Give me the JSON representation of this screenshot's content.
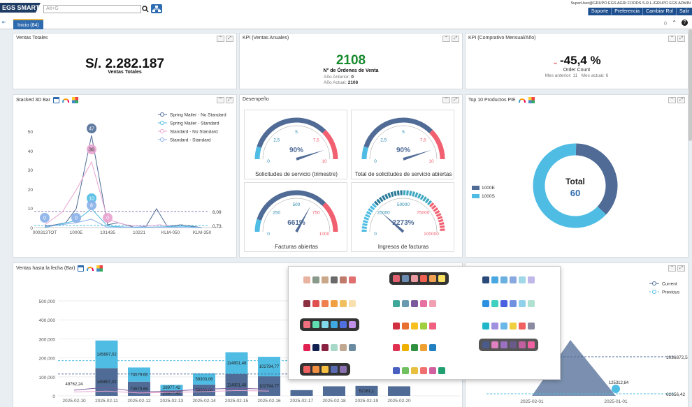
{
  "header": {
    "logo": "EGS SMART",
    "search_placeholder": "Alt+G",
    "user_info": "SuperUser@GRUPO EGS AGRI FOODS S.R.L./GRUPO EGS ADMIN",
    "nav": [
      "Soporte",
      "Preferencia",
      "Cambiar Rol",
      "Salir"
    ]
  },
  "tabs": [
    {
      "label": "Inicio (84)"
    }
  ],
  "panels": {
    "ventas_totales": {
      "title": "Ventas Totales",
      "value": "S/. 2.282.187",
      "caption": "Ventas Totales"
    },
    "kpi_anual": {
      "title": "KPI (Ventas Anuales)",
      "value": "2108",
      "caption": "N° de Órdenes de Venta",
      "prev_label": "Año Anterior:",
      "prev_value": "0",
      "curr_label": "Año Actual:",
      "curr_value": "2108"
    },
    "kpi_mensual": {
      "title": "KPI (Comprativo Mensual/Año)",
      "value": "-45,4 %",
      "caption": "Order Count",
      "prev_label": "Mes anterior:",
      "prev_value": "11",
      "curr_label": "Mes actual:",
      "curr_value": "6"
    },
    "stacked": {
      "title": "Stacked 3D Bar"
    },
    "desempeno": {
      "title": "Desempeño"
    },
    "top10": {
      "title": "Top 10 Productos PIE"
    },
    "ventas_fecha": {
      "title": "Ventas hasta la fecha (Bar)"
    }
  },
  "colors": {
    "accent": "#1e4f8e",
    "navy": "#4f6b96",
    "sky": "#4fbce3",
    "pink": "#e8a3d0",
    "kpi_green": "#188a2e"
  },
  "stacked_chart": {
    "series": [
      {
        "name": "Spring Mailer  - No Standard",
        "color": "#4f6b96"
      },
      {
        "name": "Spring Mailer  - Standard",
        "color": "#4fbce3"
      },
      {
        "name": "Standard - No Standard",
        "color": "#e8a3d0"
      },
      {
        "name": "Standard - Standard",
        "color": "#8ab0e8"
      }
    ],
    "y_ticks": [
      "50",
      "40",
      "30",
      "20",
      "10",
      "0"
    ],
    "x_ticks": [
      "000313TOT",
      "1000E",
      "101435",
      "10221",
      "KLM-050",
      "KLM-350"
    ],
    "ref_labels": [
      "8,09",
      "0,73"
    ],
    "bubbles": [
      "47",
      "36",
      "10",
      "8",
      "0",
      "0",
      "0"
    ]
  },
  "gauges": [
    {
      "label": "Solicitudes de servicio (trimestre)",
      "value": "90%",
      "ticks": [
        "0",
        "2,5",
        "5",
        "7,5",
        "10"
      ],
      "needle": 0.9
    },
    {
      "label": "Total de solicitudes de servicio abiertas",
      "value": "90%",
      "ticks": [
        "0",
        "2,5",
        "5",
        "7,5",
        "10"
      ],
      "needle": 0.9
    },
    {
      "label": "Facturas abiertas",
      "value": "661%",
      "ticks": [
        "0",
        "250",
        "500",
        "750",
        "1000"
      ],
      "needle": 0.66
    },
    {
      "label": "Ingresos de facturas",
      "value": "2273%",
      "ticks": [
        "0",
        "25000",
        "50000",
        "75000",
        "100000"
      ],
      "needle": 0.23
    }
  ],
  "donut": {
    "center_label": "Total",
    "center_value": "60",
    "legend": [
      {
        "name": "1000E",
        "color": "#4f6b96"
      },
      {
        "name": "1000S",
        "color": "#4fbce3"
      }
    ],
    "slices": [
      {
        "name": "1000E",
        "value": 22
      },
      {
        "name": "1000S",
        "value": 38
      }
    ]
  },
  "chart_data": {
    "type": "bar",
    "categories": [
      "2025-02-10",
      "2025-02-11",
      "2025-02-12",
      "2025-02-13",
      "2025-02-14",
      "2025-02-15",
      "2025-02-16",
      "2025-02-17",
      "2025-02-18",
      "2025-02-19",
      "2025-02-20"
    ],
    "series": [
      {
        "name": "",
        "values": [
          0,
          145697.02,
          74579.68,
          28977.42,
          59303.06,
          114801.48,
          102794.77,
          30000,
          50000,
          52161.1,
          50000
        ]
      },
      {
        "name": "",
        "values": [
          0,
          145697.02,
          74579.68,
          28977.42,
          59303.06,
          114801.48,
          102794.77,
          0,
          0,
          0,
          0
        ]
      }
    ],
    "bar_labels_bottom": [
      "",
      "145697,02",
      "74579,68",
      "28977,42",
      "59303,06",
      "114801,48",
      "102794,77",
      "",
      "",
      "52161,1",
      ""
    ],
    "bar_labels_top": [
      "",
      "145697,02",
      "74579,68",
      "28977,42",
      "59303,06",
      "114801,48",
      "102794,77",
      "",
      "",
      "",
      ""
    ],
    "point_label": "49762,24",
    "y_ticks": [
      "500,000",
      "400,000",
      "300,000",
      "200,000",
      "100,000",
      "0"
    ],
    "ylim": [
      0,
      500000
    ]
  },
  "line_chart": {
    "legend": [
      "Current",
      "Previous"
    ],
    "x_ticks": [
      "2025-02-01",
      "2025-01-01"
    ],
    "ref_labels": [
      "1036872,5",
      "62656,42"
    ],
    "point_label": "125312,84"
  },
  "palettes": [
    [
      "#e8b4a0",
      "#8a9a8a",
      "#c8a888",
      "#6a6a6a",
      "#c07a6a",
      "#e07070"
    ],
    [
      "#e06070",
      "#6a8ab0",
      "#e89aa0",
      "#f06050",
      "#f0a050",
      "#f8e060"
    ],
    [
      "#2a4a7a",
      "#4aa8e0",
      "#6ab0e0",
      "#8aa8e0",
      "#a0d8e8",
      "#c0b8e8"
    ],
    [
      "#8a3040",
      "#e05050",
      "#f08050",
      "#f0a040",
      "#f0c060",
      "#f8e0b0"
    ],
    [
      "#40a898",
      "#6a9ab0",
      "#7a5a9a",
      "#e870a0",
      "#f0a0b0"
    ],
    [
      "#2a90e0",
      "#40d0c0",
      "#4a60e0",
      "#7090e0",
      "#90d0e8",
      "#b0e0d0"
    ],
    [
      "#f07080",
      "#60e0b0",
      "#80d8e8",
      "#40a8e0",
      "#5070e0",
      "#c090e8"
    ],
    [
      "#d03040",
      "#e87030",
      "#f8c020",
      "#a0d040",
      "#f06080"
    ],
    [
      "#20b8c8",
      "#a090e0",
      "#6ab8e8",
      "#f0d040",
      "#f06060",
      "#8a8aa0"
    ],
    [
      "#e02050",
      "#102050",
      "#8a2040",
      "#a8d8c8",
      "#c0a890",
      "#6a8aa0"
    ],
    [
      "#e03050",
      "#f0b000",
      "#309040",
      "#f0a030",
      "#2080c0"
    ],
    [
      "#4a5a8a",
      "#e080c0",
      "#9a70c0",
      "#6a5a8a",
      "#c060a0",
      "#f060a0"
    ],
    [
      "#f06060",
      "#f09040",
      "#f8c040",
      "#5a6ab0",
      "#8a70b0"
    ],
    [
      "#4a60c0",
      "#70c060",
      "#e8c040",
      "#f07070",
      "#d060a0",
      "#20a070"
    ]
  ]
}
